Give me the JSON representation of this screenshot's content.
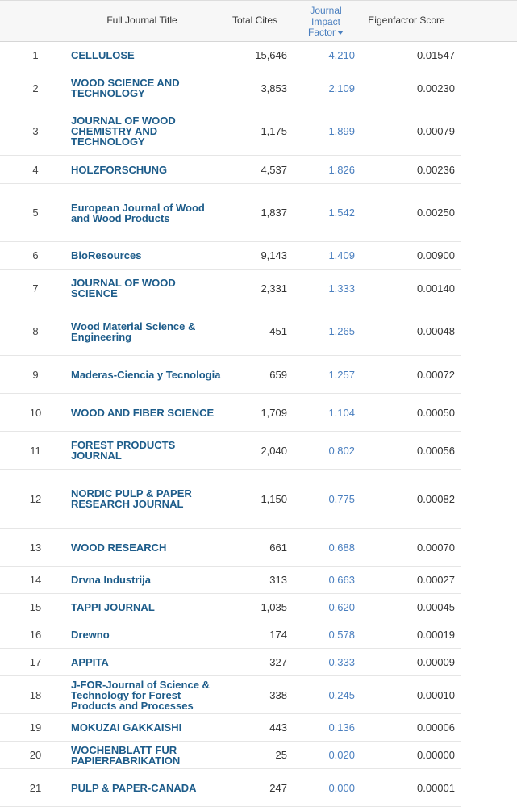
{
  "header": {
    "title_col": "Full Journal Title",
    "cites_col": "Total Cites",
    "jif_col_line1": "Journal",
    "jif_col_line2": "Impact",
    "jif_col_line3": "Factor",
    "eigen_col": "Eigenfactor Score"
  },
  "rows": [
    {
      "rank": "1",
      "title": "CELLULOSE",
      "cites": "15,646",
      "jif": "4.210",
      "eigen": "0.01547"
    },
    {
      "rank": "2",
      "title": "WOOD SCIENCE AND TECHNOLOGY",
      "cites": "3,853",
      "jif": "2.109",
      "eigen": "0.00230"
    },
    {
      "rank": "3",
      "title": "JOURNAL OF WOOD CHEMISTRY AND TECHNOLOGY",
      "cites": "1,175",
      "jif": "1.899",
      "eigen": "0.00079"
    },
    {
      "rank": "4",
      "title": "HOLZFORSCHUNG",
      "cites": "4,537",
      "jif": "1.826",
      "eigen": "0.00236"
    },
    {
      "rank": "5",
      "title": "European Journal of Wood and Wood Products",
      "cites": "1,837",
      "jif": "1.542",
      "eigen": "0.00250"
    },
    {
      "rank": "6",
      "title": "BioResources",
      "cites": "9,143",
      "jif": "1.409",
      "eigen": "0.00900"
    },
    {
      "rank": "7",
      "title": "JOURNAL OF WOOD SCIENCE",
      "cites": "2,331",
      "jif": "1.333",
      "eigen": "0.00140"
    },
    {
      "rank": "8",
      "title": "Wood Material Science & Engineering",
      "cites": "451",
      "jif": "1.265",
      "eigen": "0.00048"
    },
    {
      "rank": "9",
      "title": "Maderas-Ciencia y Tecnologia",
      "cites": "659",
      "jif": "1.257",
      "eigen": "0.00072"
    },
    {
      "rank": "10",
      "title": "WOOD AND FIBER SCIENCE",
      "cites": "1,709",
      "jif": "1.104",
      "eigen": "0.00050"
    },
    {
      "rank": "11",
      "title": "FOREST PRODUCTS JOURNAL",
      "cites": "2,040",
      "jif": "0.802",
      "eigen": "0.00056"
    },
    {
      "rank": "12",
      "title": "NORDIC PULP & PAPER RESEARCH JOURNAL",
      "cites": "1,150",
      "jif": "0.775",
      "eigen": "0.00082"
    },
    {
      "rank": "13",
      "title": "WOOD RESEARCH",
      "cites": "661",
      "jif": "0.688",
      "eigen": "0.00070"
    },
    {
      "rank": "14",
      "title": "Drvna Industrija",
      "cites": "313",
      "jif": "0.663",
      "eigen": "0.00027"
    },
    {
      "rank": "15",
      "title": "TAPPI JOURNAL",
      "cites": "1,035",
      "jif": "0.620",
      "eigen": "0.00045"
    },
    {
      "rank": "16",
      "title": "Drewno",
      "cites": "174",
      "jif": "0.578",
      "eigen": "0.00019"
    },
    {
      "rank": "17",
      "title": "APPITA",
      "cites": "327",
      "jif": "0.333",
      "eigen": "0.00009"
    },
    {
      "rank": "18",
      "title": "J-FOR-Journal of Science & Technology for Forest Products and Processes",
      "cites": "338",
      "jif": "0.245",
      "eigen": "0.00010"
    },
    {
      "rank": "19",
      "title": "MOKUZAI GAKKAISHI",
      "cites": "443",
      "jif": "0.136",
      "eigen": "0.00006"
    },
    {
      "rank": "20",
      "title": "WOCHENBLATT FUR PAPIERFABRIKATION",
      "cites": "25",
      "jif": "0.020",
      "eigen": "0.00000"
    },
    {
      "rank": "21",
      "title": "PULP & PAPER-CANADA",
      "cites": "247",
      "jif": "0.000",
      "eigen": "0.00001"
    }
  ]
}
